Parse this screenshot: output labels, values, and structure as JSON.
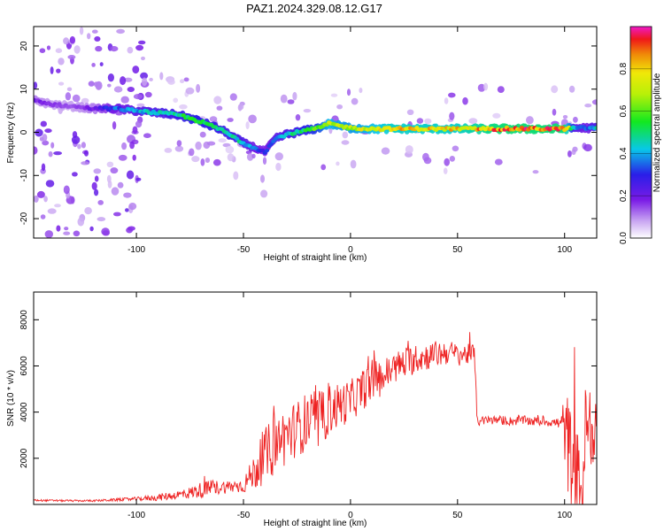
{
  "chart_data": [
    {
      "type": "heatmap",
      "title": "PAZ1.2024.329.08.12.G17",
      "xlabel": "Height of straight line (km)",
      "ylabel": "Frequency (Hz)",
      "xlim": [
        -148,
        115
      ],
      "ylim": [
        -24.5,
        24.5
      ],
      "xticks": [
        -100,
        -50,
        0,
        50,
        100
      ],
      "yticks": [
        -20,
        -10,
        0,
        10,
        20
      ],
      "colorbar": {
        "label": "Normalized spectral amplitude",
        "range": [
          0,
          1
        ],
        "ticks": [
          0.0,
          0.2,
          0.4,
          0.6,
          0.8
        ]
      },
      "ridge": {
        "x": [
          -148,
          -140,
          -130,
          -120,
          -110,
          -100,
          -90,
          -80,
          -70,
          -60,
          -50,
          -45,
          -40,
          -35,
          -30,
          -25,
          -20,
          -15,
          -10,
          -5,
          0,
          10,
          20,
          30,
          40,
          50,
          60,
          70,
          80,
          90,
          100,
          105,
          110,
          115
        ],
        "freq": [
          7.5,
          6.5,
          6.0,
          5.5,
          5.5,
          5.0,
          4.5,
          4.0,
          2.5,
          0.5,
          -2.5,
          -3.5,
          -4.5,
          -1.5,
          -0.5,
          0.0,
          0.5,
          1.0,
          2.0,
          1.5,
          1.0,
          0.8,
          0.8,
          0.8,
          0.8,
          0.8,
          0.8,
          0.8,
          0.8,
          0.8,
          0.8,
          1.0,
          1.0,
          1.0
        ],
        "amplitude": [
          0.2,
          0.15,
          0.15,
          0.2,
          0.35,
          0.4,
          0.45,
          0.5,
          0.55,
          0.5,
          0.45,
          0.35,
          0.3,
          0.4,
          0.45,
          0.5,
          0.55,
          0.6,
          0.75,
          0.7,
          0.7,
          0.75,
          0.8,
          0.8,
          0.8,
          0.8,
          0.85,
          0.9,
          0.9,
          0.9,
          0.9,
          0.4,
          0.35,
          0.45
        ]
      }
    },
    {
      "type": "line",
      "xlabel": "Height of straight line (km)",
      "ylabel": "SNR (10 * v/v)",
      "xlim": [
        -148,
        115
      ],
      "ylim": [
        0,
        9200
      ],
      "xticks": [
        -100,
        -50,
        0,
        50,
        100
      ],
      "yticks": [
        2000,
        4000,
        6000,
        8000
      ],
      "color": "#ee2222",
      "series": [
        {
          "x": [
            -148,
            -140,
            -130,
            -120,
            -110,
            -100,
            -90,
            -80,
            -75,
            -70,
            -65,
            -60,
            -55,
            -50,
            -45,
            -40,
            -35,
            -30,
            -25,
            -20,
            -15,
            -10,
            -5,
            0,
            5,
            10,
            15,
            20,
            25,
            30,
            35,
            40,
            45,
            50,
            55,
            58,
            59,
            60,
            65,
            70,
            75,
            80,
            85,
            90,
            95,
            98,
            100,
            102,
            104,
            106,
            108,
            110,
            112,
            115
          ],
          "values": [
            180,
            170,
            160,
            160,
            200,
            240,
            300,
            420,
            500,
            620,
            700,
            760,
            780,
            820,
            1400,
            2100,
            2600,
            3000,
            3300,
            3600,
            3500,
            4100,
            4300,
            4500,
            4900,
            5400,
            5500,
            5900,
            6100,
            6300,
            6400,
            6500,
            6600,
            6500,
            6500,
            6500,
            3800,
            3600,
            3650,
            3650,
            3600,
            3650,
            3600,
            3600,
            3550,
            3500,
            3400,
            2200,
            1300,
            700,
            500,
            3500,
            2800,
            3300
          ],
          "noise": [
            40,
            40,
            40,
            40,
            60,
            80,
            150,
            200,
            260,
            350,
            350,
            300,
            280,
            320,
            800,
            1200,
            1300,
            1300,
            1200,
            1300,
            1200,
            1100,
            1000,
            900,
            900,
            900,
            800,
            700,
            700,
            650,
            600,
            600,
            550,
            500,
            450,
            450,
            250,
            200,
            200,
            200,
            200,
            200,
            200,
            200,
            200,
            300,
            1500,
            2500,
            2500,
            2500,
            2500,
            2000,
            1500,
            800
          ]
        }
      ]
    }
  ]
}
